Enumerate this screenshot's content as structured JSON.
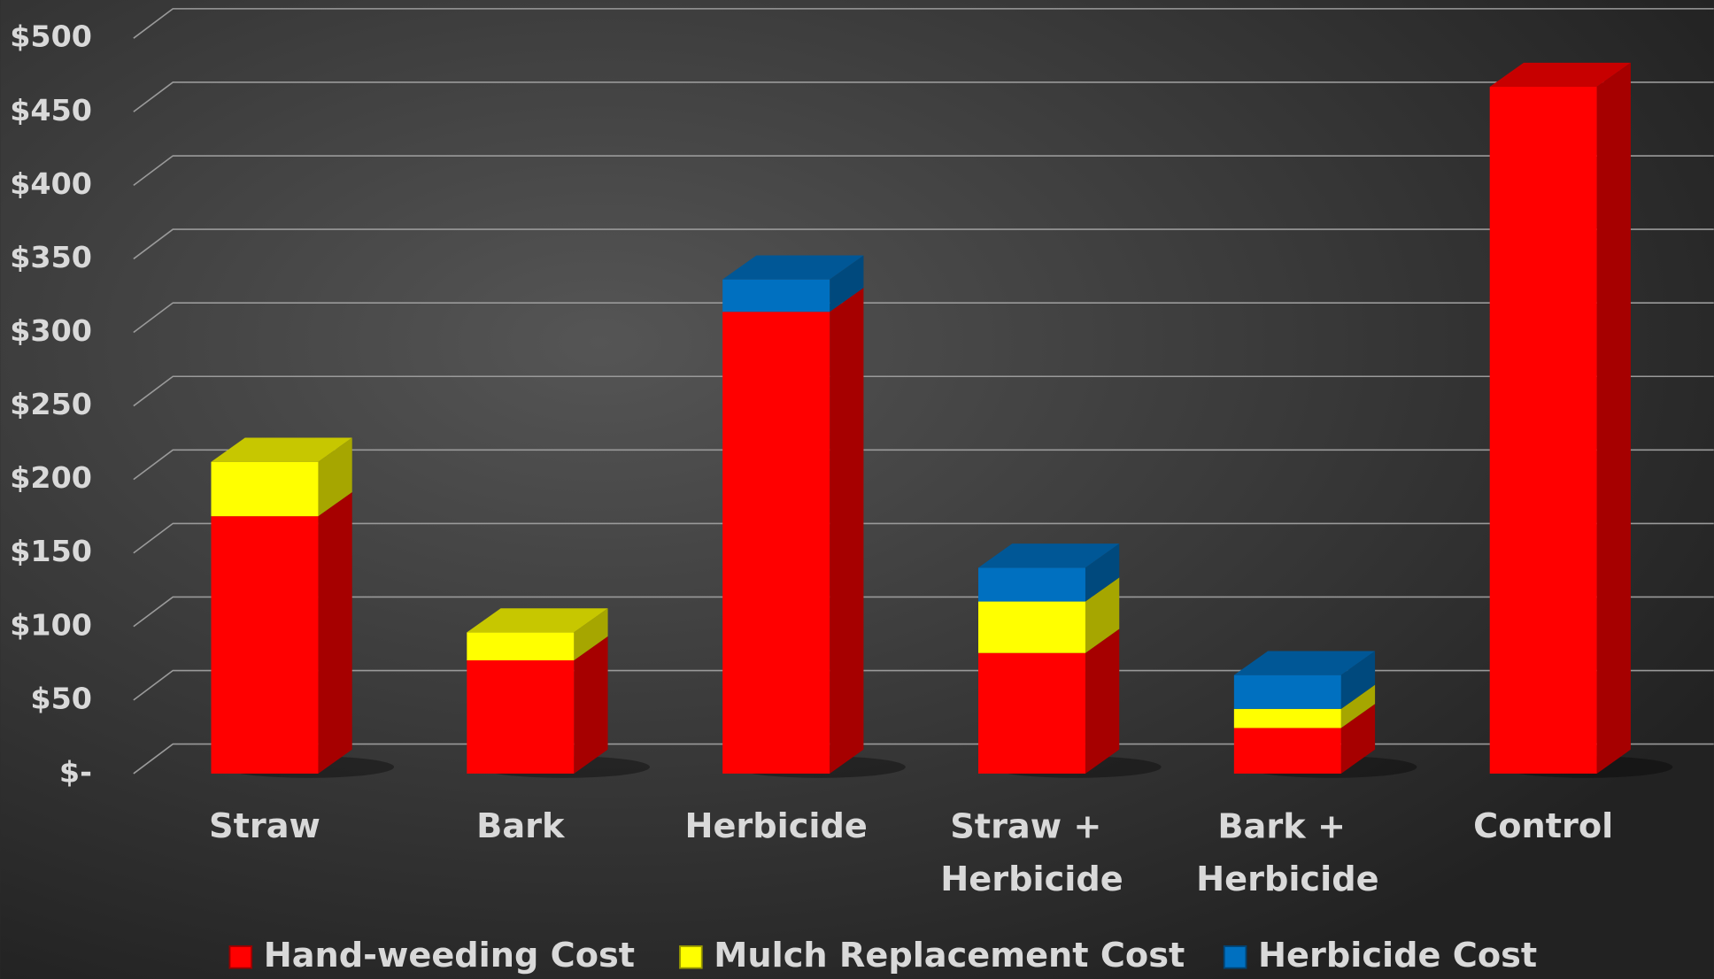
{
  "chart_data": {
    "type": "bar3d_stacked",
    "categories": [
      "Straw",
      "Bark",
      "Herbicide",
      "Straw + Herbicide",
      "Bark + Herbicide",
      "Control"
    ],
    "series": [
      {
        "name": "Hand-weeding Cost",
        "color": "#ff0000",
        "values": [
          175,
          77,
          314,
          82,
          31,
          467
        ]
      },
      {
        "name": "Mulch Replacement Cost",
        "color": "#ffff00",
        "values": [
          37,
          19,
          0,
          35,
          13,
          0
        ]
      },
      {
        "name": "Herbicide Cost",
        "color": "#0070c0",
        "values": [
          0,
          0,
          22,
          23,
          23,
          0
        ]
      }
    ],
    "ylim": [
      0,
      500
    ],
    "yticks": [
      {
        "value": 0,
        "label": "$-"
      },
      {
        "value": 50,
        "label": "$50"
      },
      {
        "value": 100,
        "label": "$100"
      },
      {
        "value": 150,
        "label": "$150"
      },
      {
        "value": 200,
        "label": "$200"
      },
      {
        "value": 250,
        "label": "$250"
      },
      {
        "value": 300,
        "label": "$300"
      },
      {
        "value": 350,
        "label": "$350"
      },
      {
        "value": 400,
        "label": "$400"
      },
      {
        "value": 450,
        "label": "$450"
      },
      {
        "value": 500,
        "label": "$500"
      }
    ],
    "grid": true,
    "legend": "bottom"
  }
}
